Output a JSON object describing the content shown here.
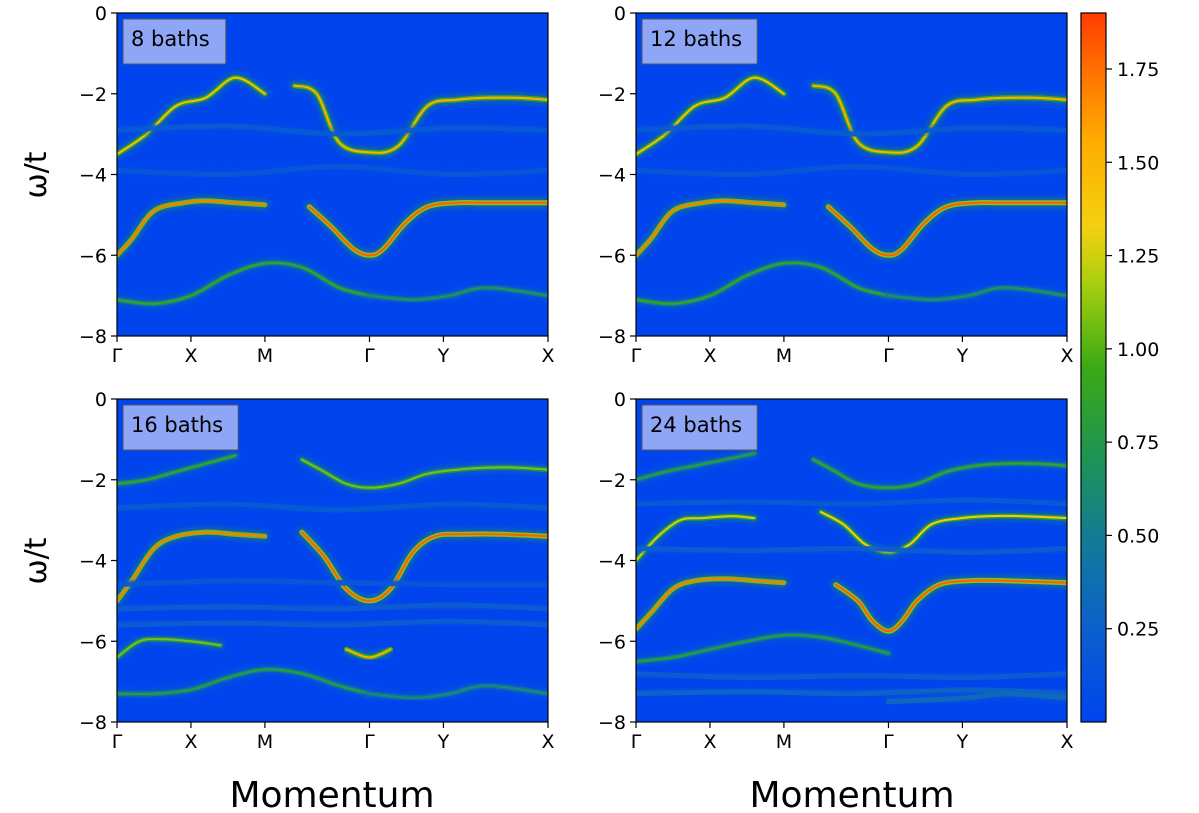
{
  "chart_data": {
    "type": "heatmap",
    "colorbar": {
      "ticks": [
        0.25,
        0.5,
        0.75,
        1.0,
        1.25,
        1.5,
        1.75
      ],
      "tick_labels": [
        "0.25",
        "0.50",
        "0.75",
        "1.00",
        "1.25",
        "1.50",
        "1.75"
      ],
      "range": [
        0.0,
        1.9
      ],
      "colormap": [
        "#0044ee",
        "#127a9a",
        "#3aaa14",
        "#aacf10",
        "#f5d010",
        "#ff8a00",
        "#ff3c00"
      ]
    },
    "xlabel": "Momentum",
    "ylabel": "ω/t",
    "x_ticks": [
      {
        "label": "Γ",
        "k": 0.0
      },
      {
        "label": "X",
        "k": 1.0
      },
      {
        "label": "M",
        "k": 2.0
      },
      {
        "label": "Γ",
        "k": 3.414
      },
      {
        "label": "Y",
        "k": 4.414
      },
      {
        "label": "X",
        "k": 5.828
      }
    ],
    "x_range": [
      0.0,
      5.828
    ],
    "y_ticks": [
      0,
      -2,
      -4,
      -6,
      -8
    ],
    "y_tick_labels": [
      "0",
      "−2",
      "−4",
      "−6",
      "−8"
    ],
    "y_range": [
      -8,
      0
    ],
    "background_color": "#0044ee",
    "panels": [
      {
        "label": "8 baths",
        "bands": [
          {
            "k": [
              0,
              0.4,
              0.8,
              1.2,
              1.6,
              2.0
            ],
            "w": [
              -3.5,
              -3.0,
              -2.3,
              -2.1,
              -1.6,
              -2.0
            ],
            "weight": 0.8
          },
          {
            "k": [
              2.4,
              2.7,
              3.0,
              3.414,
              3.8,
              4.2,
              4.6,
              5.0,
              5.4,
              5.828
            ],
            "w": [
              -1.8,
              -2.0,
              -3.2,
              -3.45,
              -3.3,
              -2.3,
              -2.15,
              -2.1,
              -2.1,
              -2.15
            ],
            "weight": 0.85
          },
          {
            "k": [
              0,
              0.2,
              0.5,
              0.9,
              1.2,
              1.6,
              2.0
            ],
            "w": [
              -6.0,
              -5.6,
              -4.9,
              -4.7,
              -4.65,
              -4.7,
              -4.75
            ],
            "weight": 0.95
          },
          {
            "k": [
              2.6,
              2.9,
              3.2,
              3.414,
              3.6,
              3.9,
              4.2,
              4.6,
              5.0,
              5.828
            ],
            "w": [
              -4.8,
              -5.3,
              -5.85,
              -6.0,
              -5.85,
              -5.2,
              -4.8,
              -4.7,
              -4.7,
              -4.7
            ],
            "weight": 1.0
          },
          {
            "k": [
              0,
              0.5,
              1.0,
              1.5,
              2.0,
              2.5,
              3.0,
              3.414
            ],
            "w": [
              -7.1,
              -7.2,
              -7.0,
              -6.5,
              -6.2,
              -6.3,
              -6.8,
              -7.0
            ],
            "weight": 0.5
          },
          {
            "k": [
              3.414,
              4.0,
              4.5,
              5.0,
              5.828
            ],
            "w": [
              -7.0,
              -7.1,
              -7.0,
              -6.8,
              -7.0
            ],
            "weight": 0.4
          },
          {
            "k": [
              0,
              1.5,
              3.0,
              4.5,
              5.828
            ],
            "w": [
              -2.9,
              -2.8,
              -3.0,
              -2.85,
              -2.9
            ],
            "weight": 0.18
          },
          {
            "k": [
              0,
              1.5,
              3.0,
              4.5,
              5.828
            ],
            "w": [
              -3.9,
              -4.0,
              -3.8,
              -4.0,
              -3.9
            ],
            "weight": 0.15
          }
        ]
      },
      {
        "label": "12 baths",
        "bands": [
          {
            "k": [
              0,
              0.4,
              0.8,
              1.2,
              1.6,
              2.0
            ],
            "w": [
              -3.5,
              -3.0,
              -2.3,
              -2.1,
              -1.6,
              -2.0
            ],
            "weight": 0.8
          },
          {
            "k": [
              2.4,
              2.7,
              3.0,
              3.414,
              3.8,
              4.2,
              4.6,
              5.0,
              5.4,
              5.828
            ],
            "w": [
              -1.8,
              -2.0,
              -3.2,
              -3.45,
              -3.3,
              -2.3,
              -2.15,
              -2.1,
              -2.1,
              -2.15
            ],
            "weight": 0.85
          },
          {
            "k": [
              0,
              0.2,
              0.5,
              0.9,
              1.2,
              1.6,
              2.0
            ],
            "w": [
              -6.0,
              -5.6,
              -4.9,
              -4.7,
              -4.65,
              -4.7,
              -4.75
            ],
            "weight": 0.95
          },
          {
            "k": [
              2.6,
              2.9,
              3.2,
              3.414,
              3.6,
              3.9,
              4.2,
              4.6,
              5.0,
              5.828
            ],
            "w": [
              -4.8,
              -5.3,
              -5.85,
              -6.0,
              -5.85,
              -5.2,
              -4.8,
              -4.7,
              -4.7,
              -4.7
            ],
            "weight": 1.0
          },
          {
            "k": [
              0,
              0.5,
              1.0,
              1.5,
              2.0,
              2.5,
              3.0,
              3.414
            ],
            "w": [
              -7.1,
              -7.2,
              -7.0,
              -6.5,
              -6.2,
              -6.3,
              -6.8,
              -7.0
            ],
            "weight": 0.5
          },
          {
            "k": [
              3.414,
              4.0,
              4.5,
              5.0,
              5.828
            ],
            "w": [
              -7.0,
              -7.1,
              -7.0,
              -6.8,
              -7.0
            ],
            "weight": 0.4
          },
          {
            "k": [
              0,
              1.5,
              3.0,
              4.5,
              5.828
            ],
            "w": [
              -2.9,
              -2.8,
              -3.0,
              -2.85,
              -2.9
            ],
            "weight": 0.18
          },
          {
            "k": [
              0,
              1.5,
              3.0,
              4.5,
              5.828
            ],
            "w": [
              -3.9,
              -4.0,
              -3.8,
              -4.0,
              -3.9
            ],
            "weight": 0.15
          }
        ]
      },
      {
        "label": "16 baths",
        "bands": [
          {
            "k": [
              0,
              0.4,
              0.8,
              1.2,
              1.6
            ],
            "w": [
              -2.1,
              -2.0,
              -1.8,
              -1.6,
              -1.4
            ],
            "weight": 0.5
          },
          {
            "k": [
              2.5,
              2.8,
              3.1,
              3.414,
              3.8,
              4.2,
              4.6,
              5.0,
              5.4,
              5.828
            ],
            "w": [
              -1.5,
              -1.8,
              -2.1,
              -2.2,
              -2.1,
              -1.85,
              -1.75,
              -1.7,
              -1.7,
              -1.75
            ],
            "weight": 0.6
          },
          {
            "k": [
              0,
              0.2,
              0.5,
              0.8,
              1.2,
              1.6,
              2.0
            ],
            "w": [
              -5.0,
              -4.5,
              -3.7,
              -3.4,
              -3.3,
              -3.35,
              -3.4
            ],
            "weight": 0.95
          },
          {
            "k": [
              2.5,
              2.8,
              3.1,
              3.414,
              3.7,
              4.0,
              4.3,
              4.7,
              5.2,
              5.828
            ],
            "w": [
              -3.3,
              -3.9,
              -4.7,
              -5.0,
              -4.7,
              -3.8,
              -3.4,
              -3.35,
              -3.35,
              -3.4
            ],
            "weight": 1.0
          },
          {
            "k": [
              0,
              0.3,
              0.6,
              1.0,
              1.4
            ],
            "w": [
              -6.4,
              -6.0,
              -5.95,
              -6.0,
              -6.1
            ],
            "weight": 0.6
          },
          {
            "k": [
              3.1,
              3.414,
              3.7
            ],
            "w": [
              -6.2,
              -6.4,
              -6.2
            ],
            "weight": 0.85
          },
          {
            "k": [
              0,
              0.5,
              1.0,
              1.5,
              2.0,
              2.5,
              3.0,
              3.414
            ],
            "w": [
              -7.3,
              -7.3,
              -7.2,
              -6.9,
              -6.7,
              -6.8,
              -7.1,
              -7.3
            ],
            "weight": 0.45
          },
          {
            "k": [
              3.414,
              4.0,
              4.5,
              5.0,
              5.828
            ],
            "w": [
              -7.3,
              -7.4,
              -7.3,
              -7.1,
              -7.3
            ],
            "weight": 0.35
          },
          {
            "k": [
              0,
              1.5,
              3.0,
              4.5,
              5.828
            ],
            "w": [
              -2.7,
              -2.6,
              -2.75,
              -2.6,
              -2.7
            ],
            "weight": 0.18
          },
          {
            "k": [
              0,
              1.5,
              3.0,
              4.5,
              5.828
            ],
            "w": [
              -5.2,
              -5.15,
              -5.2,
              -5.1,
              -5.2
            ],
            "weight": 0.2
          },
          {
            "k": [
              0,
              1.5,
              3.0,
              4.5,
              5.828
            ],
            "w": [
              -5.6,
              -5.55,
              -5.6,
              -5.5,
              -5.6
            ],
            "weight": 0.2
          },
          {
            "k": [
              0,
              1.5,
              3.0,
              4.5,
              5.828
            ],
            "w": [
              -4.6,
              -4.5,
              -4.55,
              -4.6,
              -4.6
            ],
            "weight": 0.15
          }
        ]
      },
      {
        "label": "24 baths",
        "bands": [
          {
            "k": [
              0,
              0.4,
              0.8,
              1.2,
              1.6
            ],
            "w": [
              -2.0,
              -1.8,
              -1.65,
              -1.5,
              -1.35
            ],
            "weight": 0.45
          },
          {
            "k": [
              2.4,
              2.7,
              3.0,
              3.414,
              3.8,
              4.2,
              4.6,
              5.0,
              5.4,
              5.828
            ],
            "w": [
              -1.5,
              -1.8,
              -2.1,
              -2.2,
              -2.1,
              -1.8,
              -1.65,
              -1.6,
              -1.6,
              -1.65
            ],
            "weight": 0.5
          },
          {
            "k": [
              0,
              0.3,
              0.6,
              0.9,
              1.3,
              1.6
            ],
            "w": [
              -4.0,
              -3.4,
              -3.0,
              -2.95,
              -2.9,
              -2.95
            ],
            "weight": 0.7
          },
          {
            "k": [
              2.5,
              2.8,
              3.1,
              3.414,
              3.7,
              4.0,
              4.4,
              4.8,
              5.2,
              5.828
            ],
            "w": [
              -2.8,
              -3.1,
              -3.6,
              -3.8,
              -3.6,
              -3.1,
              -2.95,
              -2.9,
              -2.9,
              -2.95
            ],
            "weight": 0.75
          },
          {
            "k": [
              0,
              0.2,
              0.5,
              0.8,
              1.2,
              1.6,
              2.0
            ],
            "w": [
              -5.7,
              -5.3,
              -4.7,
              -4.5,
              -4.45,
              -4.5,
              -4.55
            ],
            "weight": 0.95
          },
          {
            "k": [
              2.7,
              3.0,
              3.2,
              3.414,
              3.6,
              3.8,
              4.1,
              4.5,
              5.0,
              5.828
            ],
            "w": [
              -4.6,
              -5.0,
              -5.5,
              -5.75,
              -5.5,
              -5.0,
              -4.6,
              -4.5,
              -4.5,
              -4.55
            ],
            "weight": 1.0
          },
          {
            "k": [
              0,
              0.5,
              1.0,
              1.5,
              2.0,
              2.5,
              3.0,
              3.414
            ],
            "w": [
              -6.5,
              -6.4,
              -6.2,
              -6.0,
              -5.85,
              -5.9,
              -6.1,
              -6.3
            ],
            "weight": 0.45
          },
          {
            "k": [
              0,
              1.5,
              3.0,
              4.5,
              5.828
            ],
            "w": [
              -6.8,
              -6.9,
              -6.85,
              -6.9,
              -6.8
            ],
            "weight": 0.2
          },
          {
            "k": [
              0,
              1.5,
              3.0,
              4.5,
              5.828
            ],
            "w": [
              -7.3,
              -7.25,
              -7.3,
              -7.2,
              -7.3
            ],
            "weight": 0.25
          },
          {
            "k": [
              3.414,
              4.0,
              4.5,
              5.0,
              5.828
            ],
            "w": [
              -7.5,
              -7.45,
              -7.4,
              -7.3,
              -7.4
            ],
            "weight": 0.3
          },
          {
            "k": [
              0,
              1.5,
              3.0,
              4.5,
              5.828
            ],
            "w": [
              -2.6,
              -2.55,
              -2.6,
              -2.5,
              -2.6
            ],
            "weight": 0.18
          },
          {
            "k": [
              0,
              1.5,
              3.0,
              4.5,
              5.828
            ],
            "w": [
              -3.7,
              -3.75,
              -3.7,
              -3.8,
              -3.7
            ],
            "weight": 0.2
          }
        ]
      }
    ]
  }
}
